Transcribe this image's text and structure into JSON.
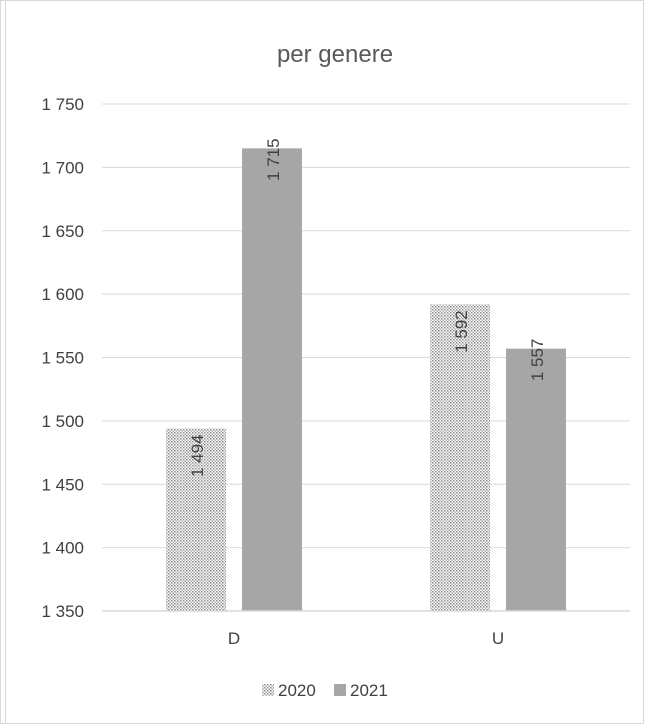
{
  "chart_data": {
    "type": "bar",
    "title": "per genere",
    "categories": [
      "D",
      "U"
    ],
    "series": [
      {
        "name": "2020",
        "values": [
          1494,
          1592
        ],
        "labels": [
          "1 494",
          "1 592"
        ],
        "pattern": "dotted",
        "color": "#bfbfbf"
      },
      {
        "name": "2021",
        "values": [
          1715,
          1557
        ],
        "labels": [
          "1 715",
          "1 557"
        ],
        "pattern": "solid",
        "color": "#a6a6a6"
      }
    ],
    "ylim": [
      1350,
      1750
    ],
    "yticks": [
      1350,
      1400,
      1450,
      1500,
      1550,
      1600,
      1650,
      1700,
      1750
    ],
    "ytick_labels": [
      "1 350",
      "1 400",
      "1 450",
      "1 500",
      "1 550",
      "1 600",
      "1 650",
      "1 700",
      "1 750"
    ],
    "grid": true,
    "legend_position": "bottom",
    "gridline_color": "#d9d9d9"
  }
}
